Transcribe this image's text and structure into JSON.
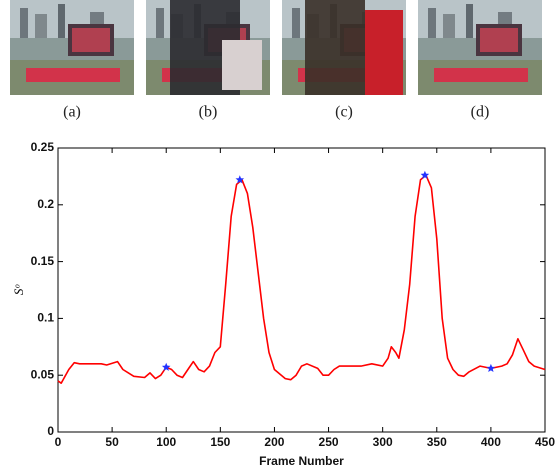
{
  "panels": [
    "(a)",
    "(b)",
    "(c)",
    "(d)"
  ],
  "chart_data": {
    "type": "line",
    "xlabel": "Frame Number",
    "ylabel": "Sᵒ",
    "xlim": [
      0,
      450
    ],
    "xticks": [
      0,
      50,
      100,
      150,
      200,
      250,
      300,
      350,
      400,
      450
    ],
    "ylim": [
      0,
      0.25
    ],
    "yticks": [
      0,
      0.05,
      0.1,
      0.15,
      0.2,
      0.25
    ],
    "series": [
      {
        "color": "#ff0000",
        "x": [
          0,
          3,
          10,
          15,
          20,
          30,
          40,
          45,
          55,
          60,
          70,
          80,
          85,
          90,
          95,
          100,
          105,
          110,
          115,
          120,
          125,
          130,
          135,
          140,
          145,
          150,
          155,
          160,
          165,
          170,
          175,
          180,
          185,
          190,
          195,
          200,
          210,
          215,
          220,
          225,
          230,
          240,
          245,
          250,
          255,
          260,
          270,
          280,
          290,
          300,
          305,
          308,
          312,
          315,
          320,
          325,
          330,
          335,
          340,
          345,
          350,
          355,
          360,
          365,
          370,
          375,
          380,
          390,
          400,
          410,
          415,
          420,
          425,
          430,
          435,
          440,
          450
        ],
        "values": [
          0.045,
          0.043,
          0.055,
          0.061,
          0.06,
          0.06,
          0.06,
          0.059,
          0.062,
          0.055,
          0.049,
          0.048,
          0.052,
          0.047,
          0.05,
          0.057,
          0.055,
          0.05,
          0.048,
          0.055,
          0.062,
          0.055,
          0.053,
          0.058,
          0.07,
          0.075,
          0.13,
          0.19,
          0.218,
          0.222,
          0.21,
          0.18,
          0.14,
          0.1,
          0.07,
          0.055,
          0.047,
          0.046,
          0.05,
          0.058,
          0.06,
          0.056,
          0.05,
          0.05,
          0.055,
          0.058,
          0.058,
          0.058,
          0.06,
          0.058,
          0.065,
          0.075,
          0.07,
          0.065,
          0.09,
          0.13,
          0.19,
          0.222,
          0.226,
          0.215,
          0.17,
          0.1,
          0.065,
          0.055,
          0.05,
          0.049,
          0.053,
          0.058,
          0.056,
          0.058,
          0.06,
          0.068,
          0.082,
          0.072,
          0.062,
          0.058,
          0.055
        ]
      },
      {
        "color": "#2233ff",
        "marker": "star",
        "x": [
          100,
          168,
          339,
          400
        ],
        "values": [
          0.057,
          0.222,
          0.226,
          0.056
        ]
      }
    ]
  }
}
